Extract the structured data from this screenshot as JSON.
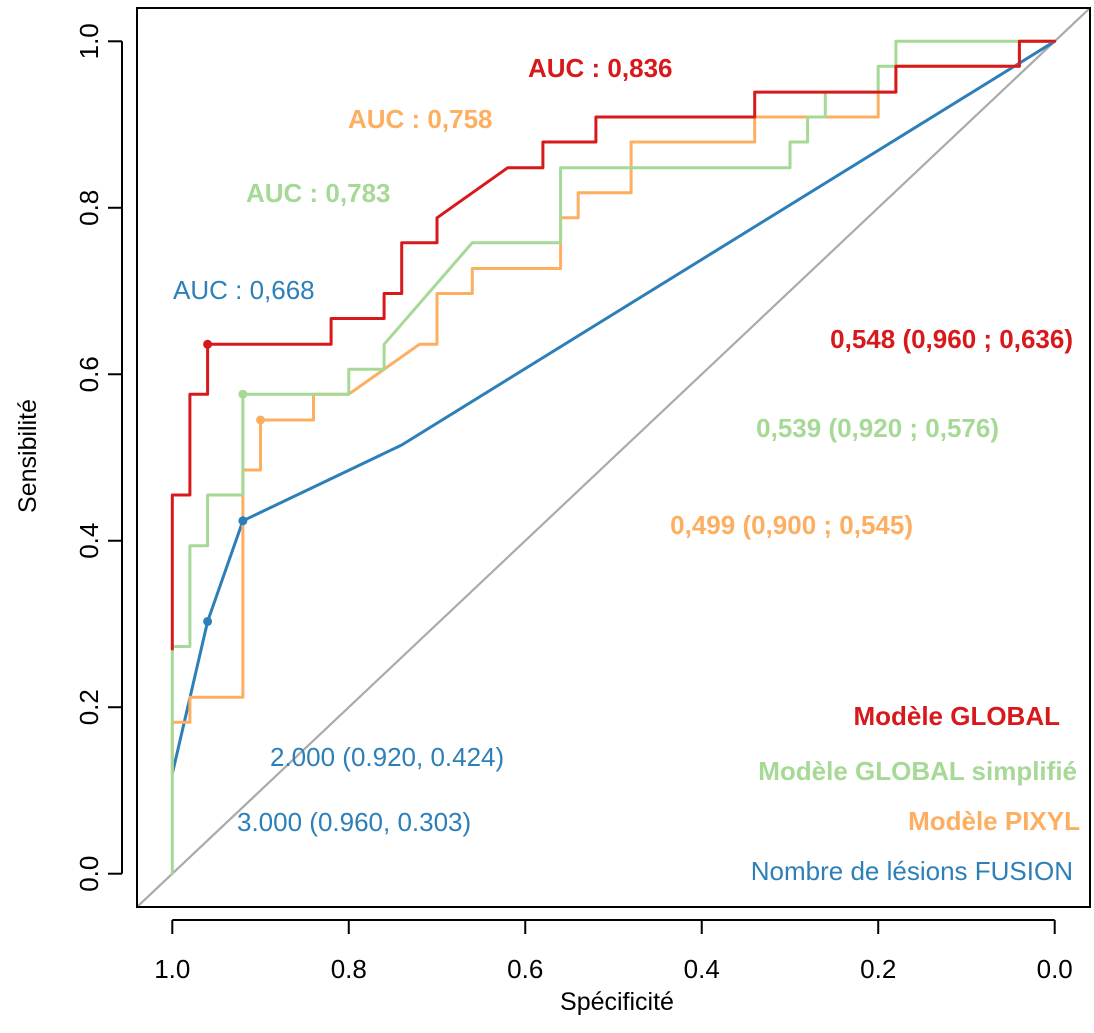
{
  "chart_data": {
    "type": "line",
    "xlabel": "Spécificité",
    "ylabel": "Sensibilité",
    "xlim": [
      1.04,
      -0.04
    ],
    "ylim": [
      -0.04,
      1.04
    ],
    "x_ticks": [
      "1.0",
      "0.8",
      "0.6",
      "0.4",
      "0.2",
      "0.0"
    ],
    "x_tick_values": [
      1.0,
      0.8,
      0.6,
      0.4,
      0.2,
      0.0
    ],
    "y_ticks": [
      "0.0",
      "0.2",
      "0.4",
      "0.6",
      "0.8",
      "1.0"
    ],
    "y_tick_values": [
      0.0,
      0.2,
      0.4,
      0.6,
      0.8,
      1.0
    ],
    "diagonal_color": "#aaaaaa",
    "series": [
      {
        "name": "Modèle GLOBAL",
        "color": "#d7191c",
        "points": [
          [
            1.0,
            0.27
          ],
          [
            1.0,
            0.455
          ],
          [
            0.98,
            0.455
          ],
          [
            0.98,
            0.576
          ],
          [
            0.96,
            0.576
          ],
          [
            0.96,
            0.636
          ],
          [
            0.82,
            0.636
          ],
          [
            0.82,
            0.667
          ],
          [
            0.76,
            0.667
          ],
          [
            0.76,
            0.697
          ],
          [
            0.74,
            0.697
          ],
          [
            0.74,
            0.758
          ],
          [
            0.7,
            0.758
          ],
          [
            0.7,
            0.788
          ],
          [
            0.62,
            0.848
          ],
          [
            0.58,
            0.848
          ],
          [
            0.58,
            0.879
          ],
          [
            0.52,
            0.879
          ],
          [
            0.52,
            0.909
          ],
          [
            0.34,
            0.909
          ],
          [
            0.34,
            0.939
          ],
          [
            0.18,
            0.939
          ],
          [
            0.18,
            0.97
          ],
          [
            0.04,
            0.97
          ],
          [
            0.04,
            1.0
          ],
          [
            0.0,
            1.0
          ]
        ],
        "threshold_point": [
          0.96,
          0.636
        ],
        "auc_label": "AUC : 0,836",
        "threshold_label": "0,548 (0,960 ; 0,636)"
      },
      {
        "name": "Modèle GLOBAL simplifié",
        "color": "#a6d996",
        "points": [
          [
            1.0,
            0.0
          ],
          [
            1.0,
            0.273
          ],
          [
            0.98,
            0.273
          ],
          [
            0.98,
            0.394
          ],
          [
            0.96,
            0.394
          ],
          [
            0.96,
            0.455
          ],
          [
            0.92,
            0.455
          ],
          [
            0.92,
            0.576
          ],
          [
            0.8,
            0.576
          ],
          [
            0.8,
            0.606
          ],
          [
            0.76,
            0.606
          ],
          [
            0.76,
            0.636
          ],
          [
            0.66,
            0.758
          ],
          [
            0.56,
            0.758
          ],
          [
            0.56,
            0.848
          ],
          [
            0.3,
            0.848
          ],
          [
            0.3,
            0.879
          ],
          [
            0.28,
            0.879
          ],
          [
            0.28,
            0.909
          ],
          [
            0.26,
            0.909
          ],
          [
            0.26,
            0.939
          ],
          [
            0.2,
            0.939
          ],
          [
            0.2,
            0.97
          ],
          [
            0.18,
            0.97
          ],
          [
            0.18,
            1.0
          ],
          [
            0.0,
            1.0
          ]
        ],
        "threshold_point": [
          0.92,
          0.576
        ],
        "auc_label": "AUC : 0,783",
        "threshold_label": "0,539 (0,920 ; 0,576)"
      },
      {
        "name": "Modèle PIXYL",
        "color": "#fdae61",
        "points": [
          [
            1.0,
            0.12
          ],
          [
            1.0,
            0.182
          ],
          [
            0.98,
            0.182
          ],
          [
            0.98,
            0.212
          ],
          [
            0.92,
            0.212
          ],
          [
            0.92,
            0.485
          ],
          [
            0.9,
            0.485
          ],
          [
            0.9,
            0.545
          ],
          [
            0.84,
            0.545
          ],
          [
            0.84,
            0.576
          ],
          [
            0.8,
            0.576
          ],
          [
            0.72,
            0.636
          ],
          [
            0.7,
            0.636
          ],
          [
            0.7,
            0.697
          ],
          [
            0.66,
            0.697
          ],
          [
            0.66,
            0.727
          ],
          [
            0.56,
            0.727
          ],
          [
            0.56,
            0.788
          ],
          [
            0.54,
            0.788
          ],
          [
            0.54,
            0.818
          ],
          [
            0.48,
            0.818
          ],
          [
            0.48,
            0.879
          ],
          [
            0.34,
            0.879
          ],
          [
            0.34,
            0.909
          ],
          [
            0.2,
            0.909
          ],
          [
            0.2,
            0.939
          ],
          [
            0.18,
            0.939
          ],
          [
            0.18,
            0.97
          ],
          [
            0.04,
            0.97
          ],
          [
            0.04,
            1.0
          ],
          [
            0.0,
            1.0
          ]
        ],
        "threshold_point": [
          0.9,
          0.545
        ],
        "auc_label": "AUC : 0,758",
        "threshold_label": "0,499 (0,900 ; 0,545)"
      },
      {
        "name": "Nombre de lésions FUSION",
        "color": "#2c7fb8",
        "points": [
          [
            1.0,
            0.12
          ],
          [
            0.96,
            0.303
          ],
          [
            0.92,
            0.424
          ],
          [
            0.74,
            0.515
          ],
          [
            0.0,
            1.0
          ]
        ],
        "threshold_points": [
          [
            0.96,
            0.303
          ],
          [
            0.92,
            0.424
          ]
        ],
        "auc_label": "AUC : 0,668",
        "threshold_labels": [
          "2.000 (0.920, 0.424)",
          "3.000 (0.960, 0.303)"
        ]
      }
    ],
    "legend": {
      "position": "bottom-right",
      "entries": [
        "Modèle GLOBAL",
        "Modèle GLOBAL simplifié",
        "Modèle PIXYL",
        "Nombre de lésions FUSION"
      ]
    }
  }
}
